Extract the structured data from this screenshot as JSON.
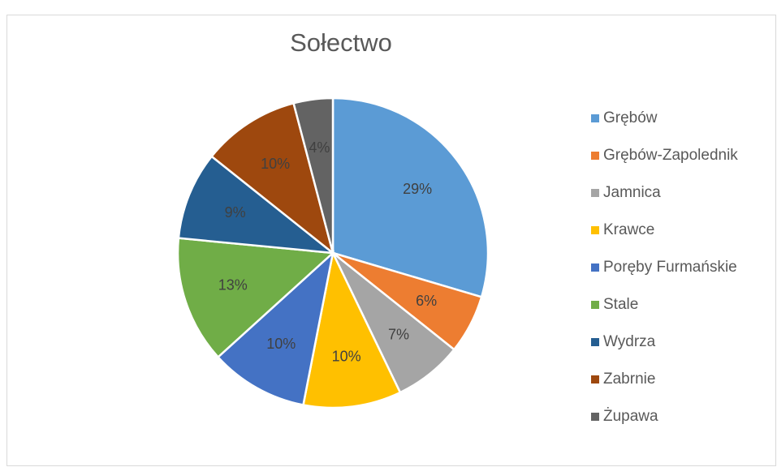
{
  "chart_data": {
    "type": "pie",
    "title": "Sołectwo",
    "categories": [
      "Grębów",
      "Grębów-Zapolednik",
      "Jamnica",
      "Krawce",
      "Poręby Furmańskie",
      "Stale",
      "Wydrza",
      "Zabrnie",
      "Żupawa"
    ],
    "values": [
      29,
      6,
      7,
      10,
      10,
      13,
      9,
      10,
      4
    ],
    "value_labels": [
      "29%",
      "6%",
      "7%",
      "10%",
      "10%",
      "13%",
      "9%",
      "10%",
      "4%"
    ],
    "colors": [
      "#5b9bd5",
      "#ed7d31",
      "#a5a5a5",
      "#ffc000",
      "#4472c4",
      "#70ad47",
      "#255e91",
      "#9e480e",
      "#636363"
    ],
    "legend": "right"
  }
}
